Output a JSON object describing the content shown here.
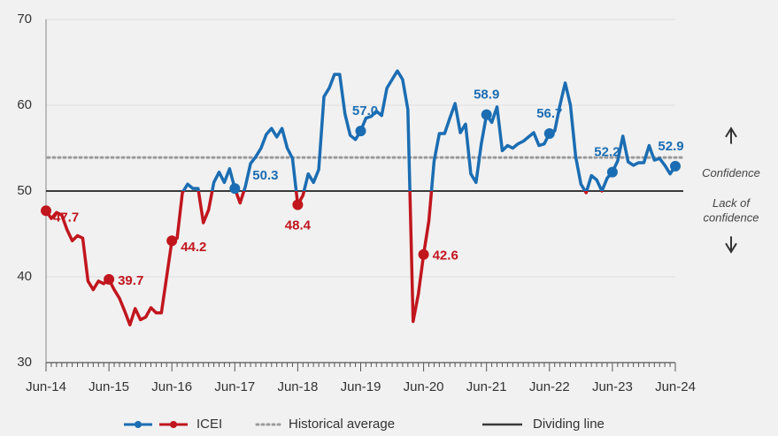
{
  "chart_data": {
    "type": "line",
    "categories": [
      "Jun-14",
      null,
      null,
      null,
      null,
      null,
      null,
      null,
      null,
      null,
      null,
      null,
      "Jun-15",
      null,
      null,
      null,
      null,
      null,
      null,
      null,
      null,
      null,
      null,
      null,
      "Jun-16",
      null,
      null,
      null,
      null,
      null,
      null,
      null,
      null,
      null,
      null,
      null,
      "Jun-17",
      null,
      null,
      null,
      null,
      null,
      null,
      null,
      null,
      null,
      null,
      null,
      "Jun-18",
      null,
      null,
      null,
      null,
      null,
      null,
      null,
      null,
      null,
      null,
      null,
      "Jun-19",
      null,
      null,
      null,
      null,
      null,
      null,
      null,
      null,
      null,
      null,
      null,
      "Jun-20",
      null,
      null,
      null,
      null,
      null,
      null,
      null,
      null,
      null,
      null,
      null,
      "Jun-21",
      null,
      null,
      null,
      null,
      null,
      null,
      null,
      null,
      null,
      null,
      null,
      "Jun-22",
      null,
      null,
      null,
      null,
      null,
      null,
      null,
      null,
      null,
      null,
      null,
      "Jun-23",
      null,
      null,
      null,
      null,
      null,
      null,
      null,
      null,
      null,
      null,
      null,
      "Jun-24"
    ],
    "series": [
      {
        "name": "ICEI",
        "color": "#1b6db3",
        "color_below": "#c1161e",
        "values": [
          47.7,
          46.8,
          47.5,
          47.2,
          45.5,
          44.2,
          44.8,
          44.5,
          39.5,
          38.5,
          39.5,
          39.2,
          39.7,
          38.5,
          37.5,
          36,
          34.4,
          36.3,
          35,
          35.3,
          36.4,
          35.8,
          35.8,
          40,
          44.2,
          44.5,
          49.8,
          50.8,
          50.3,
          50.3,
          46.3,
          47.8,
          51,
          52.2,
          51,
          52.6,
          50.3,
          48.6,
          50.5,
          53.2,
          54,
          55,
          56.6,
          57.3,
          56.3,
          57.3,
          55,
          53.8,
          48.4,
          49.5,
          52,
          51,
          52.5,
          61,
          62,
          63.6,
          63.6,
          59,
          56.5,
          56,
          57.0,
          58.5,
          58.7,
          59.3,
          58.8,
          62,
          63,
          64,
          63,
          59.5,
          34.8,
          38,
          42.6,
          46.5,
          53.5,
          56.7,
          56.7,
          58.5,
          60.2,
          56.8,
          57.8,
          52,
          51,
          55.5,
          58.9,
          58,
          59.8,
          54.7,
          55.3,
          55,
          55.5,
          55.8,
          56.3,
          56.8,
          55.3,
          55.5,
          56.7,
          57,
          60,
          62.6,
          60,
          54,
          50.8,
          49.8,
          51.8,
          51.3,
          50,
          51.5,
          52.2,
          53.5,
          56.4,
          53.4,
          53,
          53.3,
          53.3,
          55.3,
          53.6,
          53.8,
          53,
          52,
          52.9
        ],
        "value_labels": [
          "47.7",
          null,
          null,
          null,
          null,
          null,
          null,
          null,
          null,
          null,
          null,
          null,
          "39.7",
          null,
          null,
          null,
          null,
          null,
          null,
          null,
          null,
          null,
          null,
          null,
          "44.2",
          null,
          null,
          null,
          null,
          null,
          null,
          null,
          null,
          null,
          null,
          null,
          "50.3",
          null,
          null,
          null,
          null,
          null,
          null,
          null,
          null,
          null,
          null,
          null,
          "48.4",
          null,
          null,
          null,
          null,
          null,
          null,
          null,
          null,
          null,
          null,
          null,
          "57.0",
          null,
          null,
          null,
          null,
          null,
          null,
          null,
          null,
          null,
          null,
          null,
          "42.6",
          null,
          null,
          null,
          null,
          null,
          null,
          null,
          null,
          null,
          null,
          null,
          "58.9",
          null,
          null,
          null,
          null,
          null,
          null,
          null,
          null,
          null,
          null,
          null,
          "56.7",
          null,
          null,
          null,
          null,
          null,
          null,
          null,
          null,
          null,
          null,
          null,
          "52.2",
          null,
          null,
          null,
          null,
          null,
          null,
          null,
          null,
          null,
          null,
          null,
          "52.9"
        ]
      }
    ],
    "reference_lines": [
      {
        "name": "Historical average",
        "value": 53.9,
        "color": "#9a9a9a",
        "style": "dotted"
      },
      {
        "name": "Dividing line",
        "value": 50,
        "color": "#3a3a3a",
        "style": "solid"
      }
    ],
    "annotations": {
      "above": "Confidence",
      "below": [
        "Lack of",
        "confidence"
      ]
    },
    "ylim": [
      30,
      70
    ],
    "yticks": [
      30,
      40,
      50,
      60,
      70
    ],
    "grid": true,
    "legend": "bottom"
  }
}
